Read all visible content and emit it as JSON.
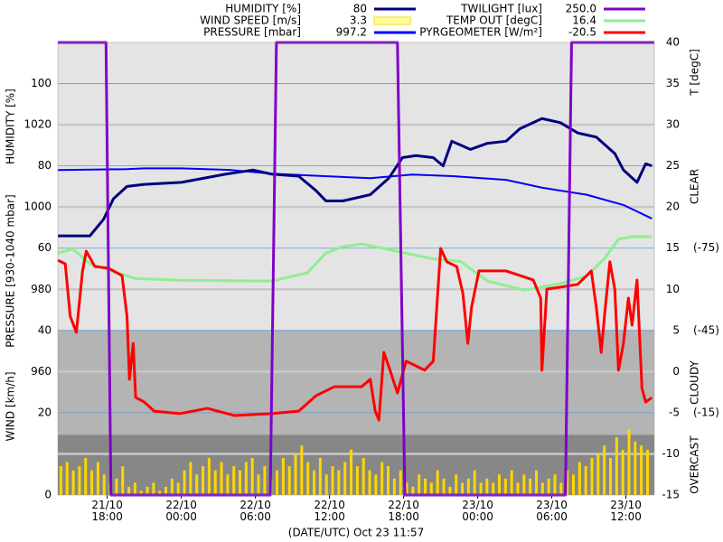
{
  "chart_data": {
    "type": "line",
    "xlabel": "(DATE/UTC) Oct 23 11:57",
    "xlim": [
      14,
      62.3
    ],
    "xticks": [
      {
        "value": 18,
        "label": "21/10\n18:00"
      },
      {
        "value": 24,
        "label": "22/10\n00:00"
      },
      {
        "value": 30,
        "label": "22/10\n06:00"
      },
      {
        "value": 36,
        "label": "22/10\n12:00"
      },
      {
        "value": 42,
        "label": "22/10\n18:00"
      },
      {
        "value": 48,
        "label": "23/10\n00:00"
      },
      {
        "value": 54,
        "label": "23/10\n06:00"
      },
      {
        "value": 60,
        "label": "23/10\n12:00"
      }
    ],
    "axes": {
      "humidity": {
        "label": "HUMIDITY [%]",
        "ylim": [
          0,
          110
        ],
        "yticks": [
          60,
          80,
          100
        ]
      },
      "wind": {
        "label": "WIND [km/h]",
        "ylim": [
          0,
          110
        ],
        "yticks": [
          0,
          20,
          40
        ]
      },
      "pressure": {
        "label": "PRESSURE [930-1040 mbar]",
        "ylim": [
          930,
          1040
        ],
        "yticks": [
          960,
          980,
          1000,
          1020
        ],
        "grid": [
          940,
          960,
          980,
          1000,
          1020
        ]
      },
      "temp": {
        "label": "T [degC]",
        "ylim": [
          -15,
          40
        ],
        "yticks": [
          -15,
          -10,
          -5,
          0,
          5,
          10,
          15,
          20,
          25,
          30,
          35,
          40
        ]
      },
      "pyrgeometer": {
        "ylim": [
          15,
          -150
        ],
        "yticks": [
          {
            "value": -75,
            "label": "(-75)"
          },
          {
            "value": -45,
            "label": "(-45)"
          },
          {
            "value": -15,
            "label": "(-15)"
          }
        ]
      },
      "twilight": {
        "ylim": [
          0,
          250
        ]
      }
    },
    "sky_bands": [
      {
        "label": "CLEAR",
        "range": [
          -150,
          -45
        ],
        "color": "#e4e4e4"
      },
      {
        "label": "CLOUDY",
        "range": [
          -45,
          -7
        ],
        "color": "#b4b4b4"
      },
      {
        "label": "OVERCAST",
        "range": [
          -7,
          15
        ],
        "color": "#878787"
      }
    ],
    "series": [
      {
        "name": "HUMIDITY [%]",
        "current": 80,
        "color": "#000080",
        "axis": "humidity",
        "type": "line",
        "x": [
          14.0,
          16.6,
          17.7,
          18.5,
          19.6,
          21.0,
          24.0,
          27.6,
          29.8,
          31.3,
          33.5,
          34.9,
          35.7,
          37.1,
          39.3,
          40.8,
          41.9,
          43.0,
          44.4,
          45.2,
          45.9,
          47.4,
          48.8,
          50.3,
          51.4,
          53.2,
          54.7,
          56.1,
          57.6,
          59.1,
          59.8,
          60.9,
          61.6,
          62.1
        ],
        "values": [
          63,
          63,
          67,
          72,
          75,
          75.5,
          76,
          78,
          79,
          78,
          77.5,
          74,
          71.5,
          71.5,
          73,
          77,
          82,
          82.5,
          82,
          80,
          86,
          84,
          85.5,
          86,
          89,
          91.5,
          90.5,
          88,
          87,
          83,
          79,
          76,
          80.5,
          80
        ]
      },
      {
        "name": "WIND SPEED [m/s]",
        "current": 3.3,
        "color": "#ffd700",
        "axis": "wind",
        "type": "bar",
        "x": [
          14.25,
          14.75,
          15.25,
          15.75,
          16.25,
          16.75,
          17.25,
          17.75,
          18.25,
          18.75,
          19.25,
          19.75,
          20.25,
          20.75,
          21.25,
          21.75,
          22.25,
          22.75,
          23.25,
          23.75,
          24.25,
          24.75,
          25.25,
          25.75,
          26.25,
          26.75,
          27.25,
          27.75,
          28.25,
          28.75,
          29.25,
          29.75,
          30.25,
          30.75,
          31.25,
          31.75,
          32.25,
          32.75,
          33.25,
          33.75,
          34.25,
          34.75,
          35.25,
          35.75,
          36.25,
          36.75,
          37.25,
          37.75,
          38.25,
          38.75,
          39.25,
          39.75,
          40.25,
          40.75,
          41.25,
          41.75,
          42.25,
          42.75,
          43.25,
          43.75,
          44.25,
          44.75,
          45.25,
          45.75,
          46.25,
          46.75,
          47.25,
          47.75,
          48.25,
          48.75,
          49.25,
          49.75,
          50.25,
          50.75,
          51.25,
          51.75,
          52.25,
          52.75,
          53.25,
          53.75,
          54.25,
          54.75,
          55.25,
          55.75,
          56.25,
          56.75,
          57.25,
          57.75,
          58.25,
          58.75,
          59.25,
          59.75,
          60.25,
          60.75,
          61.25,
          61.75
        ],
        "values": [
          7,
          8,
          6,
          7,
          9,
          6,
          8,
          5,
          3,
          4,
          7,
          2,
          3,
          1,
          2,
          3,
          1,
          2,
          4,
          3,
          6,
          8,
          5,
          7,
          9,
          6,
          8,
          5,
          7,
          6,
          8,
          9,
          5,
          7,
          4,
          6,
          9,
          7,
          10,
          12,
          8,
          6,
          9,
          5,
          7,
          6,
          8,
          11,
          7,
          9,
          6,
          5,
          8,
          7,
          4,
          6,
          3,
          2,
          5,
          4,
          3,
          6,
          4,
          2,
          5,
          3,
          4,
          6,
          3,
          4,
          3,
          5,
          4,
          6,
          3,
          5,
          4,
          6,
          3,
          4,
          5,
          3,
          6,
          5,
          8,
          7,
          9,
          10,
          12,
          9,
          14,
          11,
          16,
          13,
          12,
          11
        ]
      },
      {
        "name": "PRESSURE [mbar]",
        "current": 997.2,
        "color": "#0000ff",
        "axis": "pressure",
        "type": "line",
        "x": [
          14.0,
          19.6,
          21.0,
          24.0,
          28.0,
          31.3,
          35.0,
          39.3,
          42.7,
          46.0,
          50.3,
          53.2,
          56.8,
          59.8,
          62.1
        ],
        "values": [
          1009.0,
          1009.2,
          1009.4,
          1009.4,
          1009.0,
          1008.1,
          1007.6,
          1007.0,
          1007.9,
          1007.5,
          1006.6,
          1004.7,
          1003.0,
          1000.5,
          997.2
        ]
      },
      {
        "name": "TWILIGHT [lux]",
        "current": 250,
        "current_label": "250.0",
        "color": "#8000c8",
        "axis": "twilight",
        "type": "line",
        "x": [
          14.0,
          17.9,
          18.3,
          31.2,
          31.7,
          41.5,
          42.1,
          55.1,
          55.6,
          62.3
        ],
        "values": [
          250,
          250,
          0,
          0,
          250,
          250,
          0,
          0,
          250,
          250
        ]
      },
      {
        "name": "TEMP OUT [degC]",
        "current": 16.4,
        "color": "#90ee90",
        "axis": "temp",
        "type": "line",
        "x": [
          14.0,
          15.2,
          16.6,
          18.8,
          20.3,
          24.0,
          31.3,
          34.2,
          35.7,
          37.1,
          38.6,
          39.3,
          41.5,
          44.4,
          46.6,
          48.8,
          51.8,
          54.7,
          56.8,
          58.3,
          59.4,
          60.5,
          62.1
        ],
        "values": [
          14.4,
          14.9,
          13.1,
          12.0,
          11.3,
          11.1,
          11.0,
          12.0,
          14.4,
          15.2,
          15.5,
          15.3,
          14.6,
          13.7,
          13.4,
          11.0,
          9.9,
          10.7,
          11.6,
          13.8,
          16.1,
          16.4,
          16.4
        ]
      },
      {
        "name": "PYRGEOMETER [W/m²]",
        "current": -20.5,
        "color": "#ff0000",
        "axis": "pyrgeometer",
        "type": "line",
        "x": [
          14.0,
          14.6,
          15.0,
          15.5,
          16.0,
          16.3,
          17.0,
          18.1,
          19.2,
          19.6,
          19.8,
          20.1,
          20.3,
          21.0,
          21.8,
          23.9,
          26.1,
          28.3,
          31.3,
          33.5,
          34.9,
          36.4,
          38.6,
          39.3,
          39.7,
          40.0,
          40.4,
          40.9,
          41.5,
          42.2,
          43.0,
          43.7,
          44.4,
          45.0,
          45.5,
          46.3,
          46.8,
          47.2,
          47.5,
          48.1,
          50.3,
          52.5,
          53.1,
          53.2,
          53.6,
          54.7,
          56.1,
          57.2,
          57.6,
          58.0,
          58.3,
          58.7,
          59.1,
          59.4,
          59.8,
          60.2,
          60.5,
          60.9,
          61.3,
          61.6,
          62.1
        ],
        "values": [
          -70.6,
          -69.3,
          -50.2,
          -44.3,
          -66.7,
          -73.9,
          -68.3,
          -67.7,
          -65.0,
          -50.2,
          -27.2,
          -40.3,
          -20.6,
          -18.9,
          -15.6,
          -14.7,
          -16.6,
          -14.0,
          -14.7,
          -15.6,
          -21.2,
          -24.5,
          -24.5,
          -27.2,
          -15.6,
          -12.3,
          -37.0,
          -30.5,
          -22.2,
          -33.8,
          -32.1,
          -30.5,
          -33.8,
          -74.9,
          -70.0,
          -68.3,
          -58.5,
          -40.3,
          -53.5,
          -66.7,
          -66.7,
          -63.4,
          -56.8,
          -30.5,
          -60.1,
          -60.8,
          -61.8,
          -66.7,
          -53.5,
          -37.0,
          -51.9,
          -70.0,
          -60.1,
          -30.5,
          -40.3,
          -56.8,
          -46.9,
          -63.4,
          -23.9,
          -18.9,
          -20.5
        ]
      }
    ]
  }
}
